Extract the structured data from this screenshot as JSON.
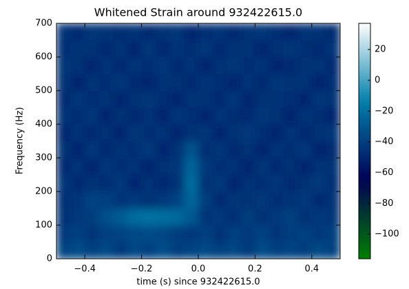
{
  "chart_data": {
    "type": "spectrogram",
    "title": "Whitened Strain around 932422615.0",
    "xlabel": "time (s) since 932422615.0",
    "ylabel": "Frequency (Hz)",
    "xlim": [
      -0.5,
      0.5
    ],
    "ylim": [
      0,
      700
    ],
    "xticks": [
      {
        "value": -0.4,
        "label": "−0.4"
      },
      {
        "value": -0.2,
        "label": "−0.2"
      },
      {
        "value": 0,
        "label": "0.0"
      },
      0.2,
      0.4
    ],
    "yticks": [
      0,
      100,
      200,
      300,
      400,
      500,
      600,
      700
    ],
    "colormap": "ocean",
    "zlim": [
      -116,
      37
    ],
    "zticks": [
      {
        "value": -100,
        "label": "−100"
      },
      {
        "value": -80,
        "label": "−80"
      },
      {
        "value": -60,
        "label": "−60"
      },
      {
        "value": -40,
        "label": "−40"
      },
      {
        "value": -20,
        "label": "−20"
      },
      0,
      20
    ],
    "xbins": [
      -0.5,
      -0.45,
      -0.4,
      -0.35,
      -0.3,
      -0.25,
      -0.2,
      -0.15,
      -0.1,
      -0.05,
      0,
      0.05,
      0.1,
      0.15,
      0.2,
      0.25,
      0.3,
      0.35,
      0.4,
      0.45,
      0.5
    ],
    "ybins": [
      0,
      50,
      100,
      150,
      200,
      250,
      300,
      350,
      400,
      450,
      500,
      550,
      600,
      650,
      700
    ],
    "z": [
      [
        -38,
        -35,
        -40,
        -36,
        -42,
        -37,
        -39,
        -34,
        -41,
        -38,
        -36,
        -40,
        -37,
        -43,
        -35,
        -39,
        -38,
        -41,
        -36,
        -40
      ],
      [
        -42,
        -39,
        -44,
        -40,
        -38,
        -36,
        -35,
        -37,
        -41,
        -43,
        -40,
        -45,
        -39,
        -42,
        -38,
        -44,
        -41,
        -39,
        -43,
        -40
      ],
      [
        -45,
        -43,
        -41,
        -33,
        -28,
        -22,
        -20,
        -21,
        -23,
        -30,
        -44,
        -42,
        -47,
        -41,
        -45,
        -43,
        -40,
        -46,
        -42,
        -44
      ],
      [
        -47,
        -44,
        -38,
        -40,
        -44,
        -42,
        -46,
        -43,
        -38,
        -24,
        -41,
        -48,
        -44,
        -46,
        -43,
        -47,
        -45,
        -42,
        -48,
        -45
      ],
      [
        -44,
        -48,
        -45,
        -47,
        -43,
        -49,
        -45,
        -48,
        -46,
        -22,
        -45,
        -43,
        -49,
        -45,
        -47,
        -44,
        -48,
        -46,
        -43,
        -47
      ],
      [
        -48,
        -45,
        -49,
        -44,
        -47,
        -45,
        -50,
        -46,
        -44,
        -25,
        -43,
        -47,
        -45,
        -50,
        -44,
        -48,
        -46,
        -49,
        -45,
        -46
      ],
      [
        -46,
        -49,
        -44,
        -48,
        -45,
        -47,
        -43,
        -49,
        -46,
        -32,
        -47,
        -44,
        -48,
        -46,
        -50,
        -45,
        -47,
        -44,
        -49,
        -48
      ],
      [
        -49,
        -45,
        -48,
        -46,
        -50,
        -44,
        -47,
        -45,
        -49,
        -46,
        -44,
        -50,
        -46,
        -43,
        -47,
        -49,
        -45,
        -48,
        -46,
        -44
      ],
      [
        -45,
        -47,
        -44,
        -49,
        -46,
        -48,
        -45,
        -50,
        -44,
        -47,
        -49,
        -45,
        -47,
        -48,
        -44,
        -46,
        -50,
        -45,
        -47,
        -49
      ],
      [
        -48,
        -44,
        -47,
        -45,
        -49,
        -46,
        -44,
        -47,
        -50,
        -45,
        -46,
        -48,
        -44,
        -49,
        -46,
        -45,
        -47,
        -49,
        -44,
        -46
      ],
      [
        -46,
        -50,
        -45,
        -47,
        -44,
        -48,
        -49,
        -45,
        -46,
        -48,
        -45,
        -47,
        -50,
        -45,
        -48,
        -44,
        -46,
        -45,
        -50,
        -47
      ],
      [
        -44,
        -46,
        -49,
        -45,
        -48,
        -45,
        -47,
        -44,
        -48,
        -45,
        -49,
        -46,
        -44,
        -47,
        -45,
        -49,
        -48,
        -46,
        -45,
        -48
      ],
      [
        -47,
        -45,
        -46,
        -48,
        -45,
        -49,
        -44,
        -48,
        -45,
        -47,
        -44,
        -48,
        -46,
        -45,
        -49,
        -46,
        -44,
        -47,
        -48,
        -45
      ],
      [
        -45,
        -48,
        -44,
        -46,
        -47,
        -45,
        -48,
        -46,
        -44,
        -49,
        -47,
        -45,
        -48,
        -46,
        -44,
        -47,
        -49,
        -45,
        -46,
        -48
      ]
    ]
  }
}
